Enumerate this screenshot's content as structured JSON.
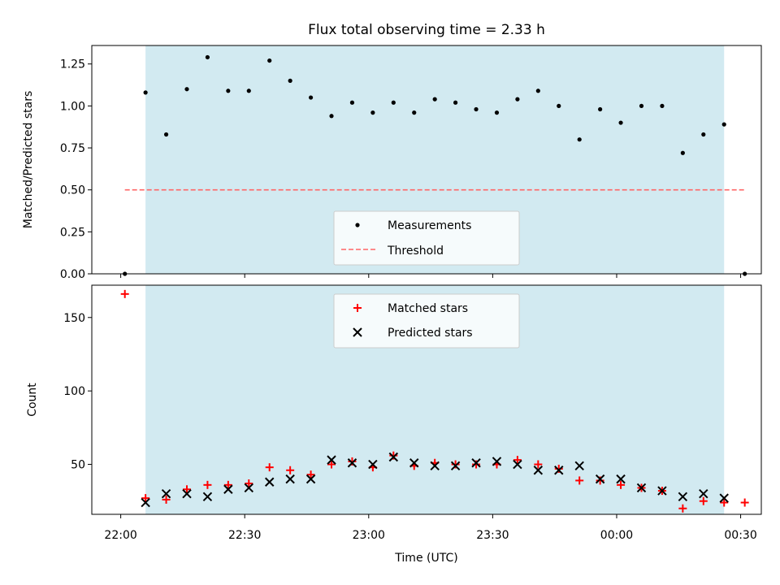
{
  "chart_data": [
    {
      "type": "scatter",
      "title": "Flux total observing time = 2.33 h",
      "ylabel": "Matched/Predicted stars",
      "xlabel": "",
      "xlim": [
        "21:53",
        "00:35"
      ],
      "ylim": [
        0,
        1.36
      ],
      "x_ticks": [
        "22:00",
        "22:30",
        "23:00",
        "23:30",
        "00:00",
        "00:30"
      ],
      "y_ticks": [
        "0.00",
        "0.25",
        "0.50",
        "0.75",
        "1.00",
        "1.25"
      ],
      "legend_position": "bottom-center",
      "shaded_interval": [
        "22:06",
        "00:26"
      ],
      "shaded_color": "#add8e6",
      "threshold": {
        "name": "Threshold",
        "value": 0.5,
        "x_range": [
          "22:01",
          "00:31"
        ],
        "color": "#ff6666"
      },
      "series": [
        {
          "name": "Measurements",
          "color": "#000000",
          "marker": "dot",
          "points": [
            [
              "22:01",
              0.0
            ],
            [
              "22:06",
              1.08
            ],
            [
              "22:11",
              0.83
            ],
            [
              "22:16",
              1.1
            ],
            [
              "22:21",
              1.29
            ],
            [
              "22:26",
              1.09
            ],
            [
              "22:31",
              1.09
            ],
            [
              "22:36",
              1.27
            ],
            [
              "22:41",
              1.15
            ],
            [
              "22:46",
              1.05
            ],
            [
              "22:51",
              0.94
            ],
            [
              "22:56",
              1.02
            ],
            [
              "23:01",
              0.96
            ],
            [
              "23:06",
              1.02
            ],
            [
              "23:11",
              0.96
            ],
            [
              "23:16",
              1.04
            ],
            [
              "23:21",
              1.02
            ],
            [
              "23:26",
              0.98
            ],
            [
              "23:31",
              0.96
            ],
            [
              "23:36",
              1.04
            ],
            [
              "23:41",
              1.09
            ],
            [
              "23:46",
              1.0
            ],
            [
              "23:51",
              0.8
            ],
            [
              "23:56",
              0.98
            ],
            [
              "00:01",
              0.9
            ],
            [
              "00:06",
              1.0
            ],
            [
              "00:11",
              1.0
            ],
            [
              "00:16",
              0.72
            ],
            [
              "00:21",
              0.83
            ],
            [
              "00:26",
              0.89
            ],
            [
              "00:31",
              0.0
            ]
          ]
        }
      ]
    },
    {
      "type": "scatter",
      "title": "",
      "ylabel": "Count",
      "xlabel": "Time (UTC)",
      "xlim": [
        "21:53",
        "00:35"
      ],
      "ylim": [
        16,
        172
      ],
      "x_ticks": [
        "22:00",
        "22:30",
        "23:00",
        "23:30",
        "00:00",
        "00:30"
      ],
      "y_ticks": [
        "50",
        "100",
        "150"
      ],
      "legend_position": "top-center",
      "shaded_interval": [
        "22:06",
        "00:26"
      ],
      "shaded_color": "#add8e6",
      "series": [
        {
          "name": "Matched stars",
          "color": "#ff0000",
          "marker": "plus",
          "points": [
            [
              "22:01",
              166
            ],
            [
              "22:06",
              27
            ],
            [
              "22:11",
              26
            ],
            [
              "22:16",
              33
            ],
            [
              "22:21",
              36
            ],
            [
              "22:26",
              36
            ],
            [
              "22:31",
              37
            ],
            [
              "22:36",
              48
            ],
            [
              "22:41",
              46
            ],
            [
              "22:46",
              43
            ],
            [
              "22:51",
              50
            ],
            [
              "22:56",
              52
            ],
            [
              "23:01",
              48
            ],
            [
              "23:06",
              56
            ],
            [
              "23:11",
              49
            ],
            [
              "23:16",
              51
            ],
            [
              "23:21",
              50
            ],
            [
              "23:26",
              50
            ],
            [
              "23:31",
              50
            ],
            [
              "23:36",
              53
            ],
            [
              "23:41",
              50
            ],
            [
              "23:46",
              47
            ],
            [
              "23:51",
              39
            ],
            [
              "23:56",
              39
            ],
            [
              "00:01",
              36
            ],
            [
              "00:06",
              34
            ],
            [
              "00:11",
              32
            ],
            [
              "00:16",
              20
            ],
            [
              "00:21",
              25
            ],
            [
              "00:26",
              24
            ],
            [
              "00:31",
              24
            ]
          ]
        },
        {
          "name": "Predicted stars",
          "color": "#000000",
          "marker": "x",
          "points": [
            [
              "22:06",
              24
            ],
            [
              "22:11",
              30
            ],
            [
              "22:16",
              30
            ],
            [
              "22:21",
              28
            ],
            [
              "22:26",
              33
            ],
            [
              "22:31",
              34
            ],
            [
              "22:36",
              38
            ],
            [
              "22:41",
              40
            ],
            [
              "22:46",
              40
            ],
            [
              "22:51",
              53
            ],
            [
              "22:56",
              51
            ],
            [
              "23:01",
              50
            ],
            [
              "23:06",
              55
            ],
            [
              "23:11",
              51
            ],
            [
              "23:16",
              49
            ],
            [
              "23:21",
              49
            ],
            [
              "23:26",
              51
            ],
            [
              "23:31",
              52
            ],
            [
              "23:36",
              50
            ],
            [
              "23:41",
              46
            ],
            [
              "23:46",
              46
            ],
            [
              "23:51",
              49
            ],
            [
              "23:56",
              40
            ],
            [
              "00:01",
              40
            ],
            [
              "00:06",
              34
            ],
            [
              "00:11",
              32
            ],
            [
              "00:16",
              28
            ],
            [
              "00:21",
              30
            ],
            [
              "00:26",
              27
            ]
          ]
        }
      ]
    }
  ]
}
